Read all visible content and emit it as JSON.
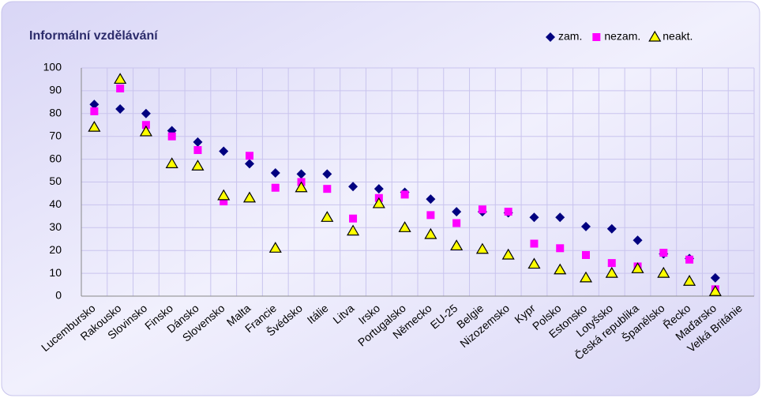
{
  "chart_data": {
    "type": "scatter",
    "title": "Informální vzdělávání",
    "categories": [
      "Lucembursko",
      "Rakousko",
      "Slovinsko",
      "Finsko",
      "Dánsko",
      "Slovensko",
      "Malta",
      "Francie",
      "Švédsko",
      "Itálie",
      "Litva",
      "Irsko",
      "Portugalsko",
      "Německo",
      "EU-25",
      "Belgie",
      "Nizozemsko",
      "Kypr",
      "Polsko",
      "Estonsko",
      "Lotyšsko",
      "Česká republika",
      "Španělsko",
      "Řecko",
      "Maďarsko",
      "Velká Británie"
    ],
    "series": [
      {
        "name": "zam.",
        "color": "#000080",
        "marker": "diamond",
        "values": [
          84,
          82,
          80,
          72.5,
          67.5,
          63.5,
          58,
          54,
          53.5,
          53.5,
          48,
          47,
          45.5,
          42.5,
          37,
          37,
          36.5,
          34.5,
          34.5,
          30.5,
          29.5,
          24.5,
          18.5,
          16.5,
          8,
          null
        ]
      },
      {
        "name": "nezam.",
        "color": "#ff00ff",
        "marker": "square",
        "values": [
          81,
          91,
          75,
          70,
          64,
          41.5,
          61.5,
          47.5,
          50,
          47,
          34,
          43,
          44.5,
          35.5,
          32,
          38,
          37,
          23,
          21,
          18,
          14.5,
          13,
          19,
          16,
          3,
          null
        ]
      },
      {
        "name": "neakt.",
        "color": "#ffff00",
        "marker": "triangle",
        "values": [
          74,
          95,
          72,
          58,
          57,
          44,
          43,
          21,
          47.5,
          34.5,
          28.5,
          40.5,
          30,
          27,
          22,
          20.5,
          18,
          14,
          11.5,
          8,
          10,
          12,
          10,
          6.5,
          2,
          null
        ]
      }
    ],
    "ylim": [
      0,
      100
    ],
    "yticks": [
      0,
      10,
      20,
      30,
      40,
      50,
      60,
      70,
      80,
      90,
      100
    ],
    "grid": true,
    "legend": "top-right"
  }
}
